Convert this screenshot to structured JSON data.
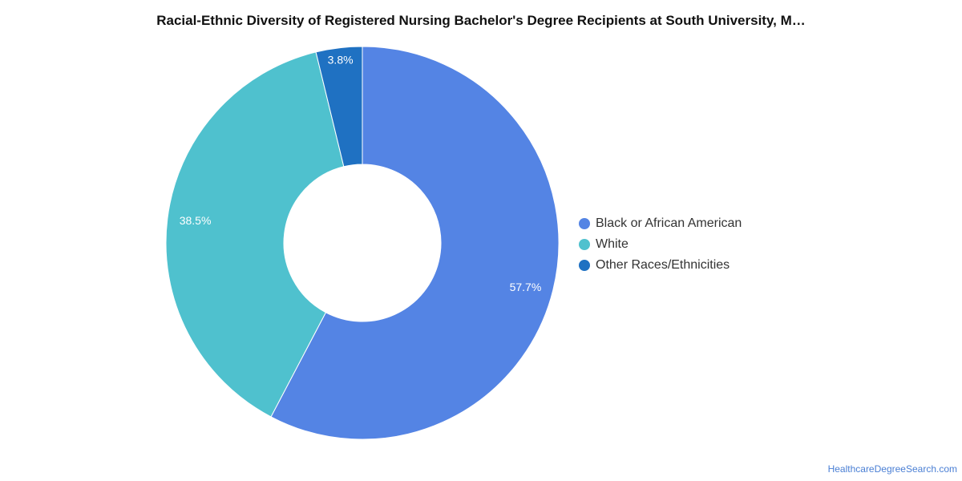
{
  "chart_data": {
    "type": "pie",
    "variant": "donut",
    "title": "Racial-Ethnic Diversity of Registered Nursing Bachelor's Degree Recipients at South University, M…",
    "categories": [
      "Black or African American",
      "White",
      "Other Races/Ethnicities"
    ],
    "values": [
      57.7,
      38.5,
      3.8
    ],
    "value_labels": [
      "57.7%",
      "38.5%",
      "3.8%"
    ],
    "colors": [
      "#5484e4",
      "#4fc1ce",
      "#1f71c2"
    ],
    "start_angle_deg": 0,
    "direction": "clockwise",
    "legend_position": "right"
  },
  "footer": {
    "credit": "HealthcareDegreeSearch.com"
  }
}
